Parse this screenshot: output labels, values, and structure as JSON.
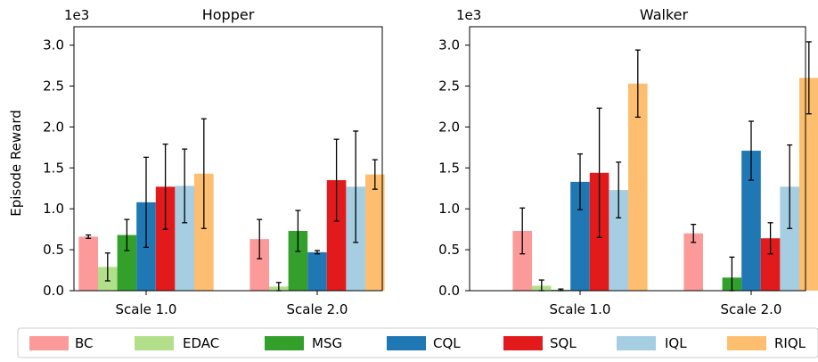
{
  "chart_data": [
    {
      "type": "bar",
      "title": "Hopper",
      "ylabel": "Episode Reward",
      "scale_label": "1e3",
      "ylim": [
        0,
        3.2
      ],
      "yticks": [
        "0.0",
        "0.5",
        "1.0",
        "1.5",
        "2.0",
        "2.5",
        "3.0"
      ],
      "categories": [
        "Scale 1.0",
        "Scale 2.0"
      ],
      "series": [
        {
          "name": "BC",
          "values": [
            0.66,
            0.63
          ],
          "errors": [
            0.02,
            0.24
          ]
        },
        {
          "name": "EDAC",
          "values": [
            0.29,
            0.05
          ],
          "errors": [
            0.17,
            0.05
          ]
        },
        {
          "name": "MSG",
          "values": [
            0.68,
            0.73
          ],
          "errors": [
            0.19,
            0.25
          ]
        },
        {
          "name": "CQL",
          "values": [
            1.08,
            0.47
          ],
          "errors": [
            0.55,
            0.02
          ]
        },
        {
          "name": "SQL",
          "values": [
            1.27,
            1.35
          ],
          "errors": [
            0.52,
            0.5
          ]
        },
        {
          "name": "IQL",
          "values": [
            1.28,
            1.27
          ],
          "errors": [
            0.45,
            0.68
          ]
        },
        {
          "name": "RIQL",
          "values": [
            1.43,
            1.42
          ],
          "errors": [
            0.67,
            0.18
          ]
        }
      ]
    },
    {
      "type": "bar",
      "title": "Walker",
      "ylabel": "",
      "scale_label": "1e3",
      "ylim": [
        0,
        3.2
      ],
      "yticks": [
        "0.0",
        "0.5",
        "1.0",
        "1.5",
        "2.0",
        "2.5",
        "3.0"
      ],
      "categories": [
        "Scale 1.0",
        "Scale 2.0"
      ],
      "series": [
        {
          "name": "BC",
          "values": [
            0.73,
            0.7
          ],
          "errors": [
            0.28,
            0.11
          ]
        },
        {
          "name": "EDAC",
          "values": [
            0.06,
            0.0
          ],
          "errors": [
            0.07,
            0.0
          ]
        },
        {
          "name": "MSG",
          "values": [
            0.01,
            0.16
          ],
          "errors": [
            0.01,
            0.25
          ]
        },
        {
          "name": "CQL",
          "values": [
            1.33,
            1.71
          ],
          "errors": [
            0.34,
            0.36
          ]
        },
        {
          "name": "SQL",
          "values": [
            1.44,
            0.64
          ],
          "errors": [
            0.79,
            0.19
          ]
        },
        {
          "name": "IQL",
          "values": [
            1.23,
            1.27
          ],
          "errors": [
            0.34,
            0.51
          ]
        },
        {
          "name": "RIQL",
          "values": [
            2.53,
            2.6
          ],
          "errors": [
            0.41,
            0.44
          ]
        }
      ]
    }
  ],
  "legend": {
    "position": "bottom",
    "entries": [
      {
        "name": "BC",
        "color": "#fb9a99"
      },
      {
        "name": "EDAC",
        "color": "#b2df8a"
      },
      {
        "name": "MSG",
        "color": "#33a02c"
      },
      {
        "name": "CQL",
        "color": "#1f78b4"
      },
      {
        "name": "SQL",
        "color": "#e31a1c"
      },
      {
        "name": "IQL",
        "color": "#a6cee3"
      },
      {
        "name": "RIQL",
        "color": "#fdbf6f"
      }
    ]
  }
}
